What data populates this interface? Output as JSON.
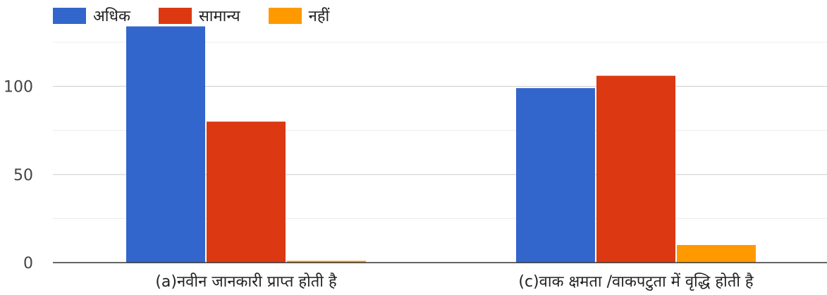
{
  "chart_data": {
    "type": "bar",
    "title": "",
    "xlabel": "",
    "ylabel": "",
    "ylim": [
      0,
      135
    ],
    "yticks": [
      0,
      50,
      100
    ],
    "grid": true,
    "legend_position": "top-left",
    "categories": [
      "(a)नवीन जानकारी प्राप्त होती है",
      "(c)वाक क्षमता /वाकपटुता में वृद्धि होती है"
    ],
    "series": [
      {
        "name": "अधिक",
        "color": "#3366CC",
        "values": [
          134,
          99
        ]
      },
      {
        "name": "सामान्य",
        "color": "#DC3912",
        "values": [
          80,
          106
        ]
      },
      {
        "name": "नहीं",
        "color": "#FF9900",
        "values": [
          1,
          10
        ]
      }
    ]
  }
}
